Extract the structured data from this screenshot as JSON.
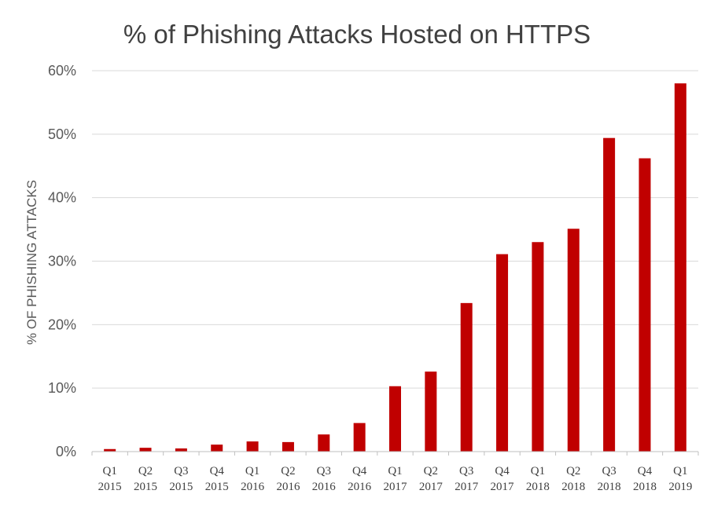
{
  "chart_data": {
    "type": "bar",
    "title": "% of Phishing Attacks Hosted on HTTPS",
    "xlabel": "",
    "ylabel": "% OF PHISHING ATTACKS",
    "ylim": [
      0,
      60
    ],
    "yticks": [
      "0%",
      "10%",
      "20%",
      "30%",
      "40%",
      "50%",
      "60%"
    ],
    "grid": true,
    "legend": "none",
    "bar_color": "#c00000",
    "categories": [
      [
        "Q1",
        "2015"
      ],
      [
        "Q2",
        "2015"
      ],
      [
        "Q3",
        "2015"
      ],
      [
        "Q4",
        "2015"
      ],
      [
        "Q1",
        "2016"
      ],
      [
        "Q2",
        "2016"
      ],
      [
        "Q3",
        "2016"
      ],
      [
        "Q4",
        "2016"
      ],
      [
        "Q1",
        "2017"
      ],
      [
        "Q2",
        "2017"
      ],
      [
        "Q3",
        "2017"
      ],
      [
        "Q4",
        "2017"
      ],
      [
        "Q1",
        "2018"
      ],
      [
        "Q2",
        "2018"
      ],
      [
        "Q3",
        "2018"
      ],
      [
        "Q4",
        "2018"
      ],
      [
        "Q1",
        "2019"
      ]
    ],
    "values": [
      0.4,
      0.6,
      0.5,
      1.1,
      1.6,
      1.5,
      2.7,
      4.5,
      10.3,
      12.6,
      23.4,
      31.1,
      33.0,
      35.1,
      49.4,
      46.2,
      58.0
    ]
  }
}
